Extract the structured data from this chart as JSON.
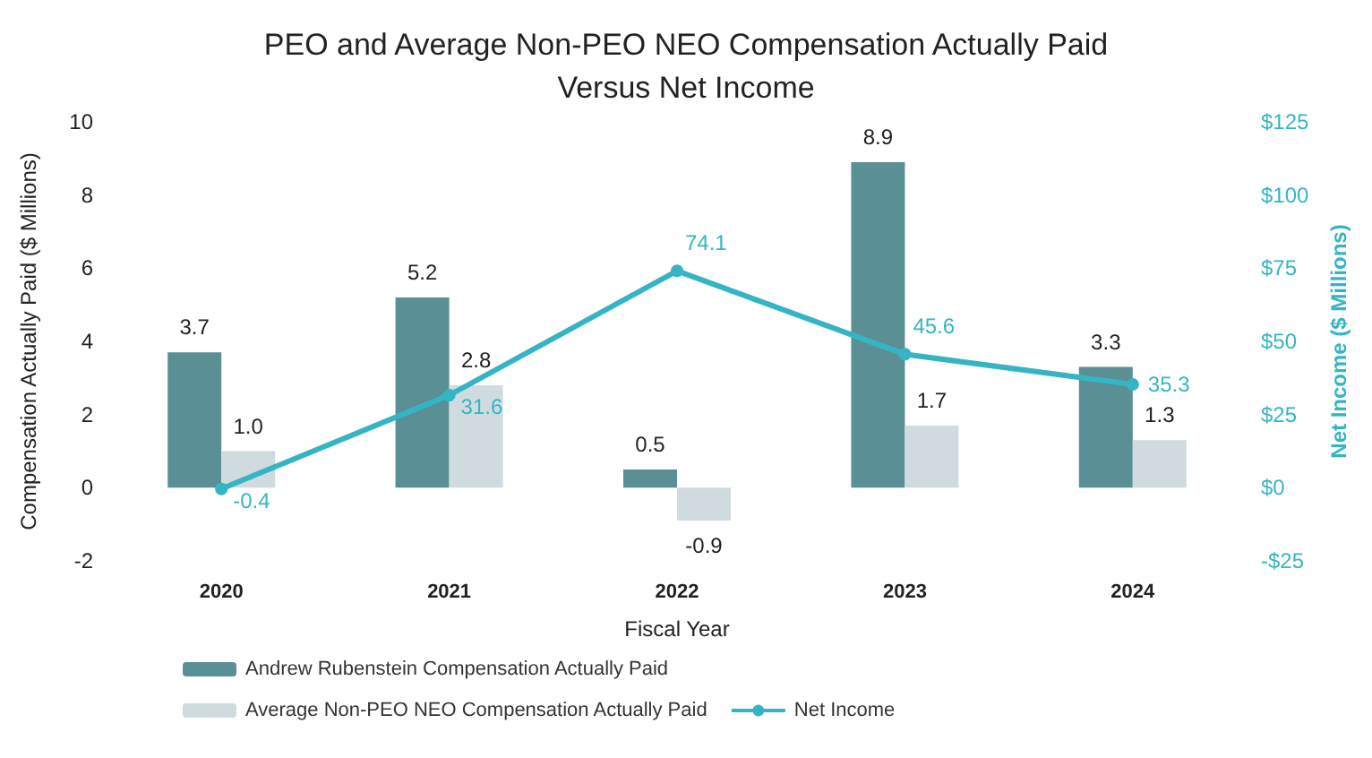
{
  "chart_data": {
    "type": "bar",
    "title": "PEO and Average Non-PEO NEO Compensation Actually Paid\nVersus Net Income",
    "xlabel": "Fiscal Year",
    "ylabel": "Compensation Actually Paid ($ Millions)",
    "y2label": "Net Income ($ Millions)",
    "categories": [
      "2020",
      "2021",
      "2022",
      "2023",
      "2024"
    ],
    "series": [
      {
        "name": "Andrew Rubenstein Compensation Actually Paid",
        "color": "#5a8f96",
        "values": [
          3.7,
          5.2,
          0.5,
          8.9,
          3.3
        ],
        "value_labels": [
          "3.7",
          "5.2",
          "0.5",
          "8.9",
          "3.3"
        ]
      },
      {
        "name": "Average Non-PEO NEO Compensation Actually Paid",
        "color": "#cfdbdf",
        "values": [
          1.0,
          2.8,
          -0.9,
          1.7,
          1.3
        ],
        "value_labels": [
          "1.0",
          "2.8",
          "-0.9",
          "1.7",
          "1.3"
        ]
      },
      {
        "name": "Net Income",
        "type": "line",
        "axis": "y2",
        "color": "#35b5c4",
        "values": [
          -0.4,
          31.6,
          74.1,
          45.6,
          35.3
        ],
        "value_labels": [
          "-0.4",
          "31.6",
          "74.1",
          "45.6",
          "35.3"
        ]
      }
    ],
    "ylim": [
      -2,
      10
    ],
    "yticks": [
      -2,
      0,
      2,
      4,
      6,
      8,
      10
    ],
    "y2lim": [
      -25,
      125
    ],
    "y2ticks": [
      {
        "value": -25,
        "label": "-$25"
      },
      {
        "value": 0,
        "label": "$0"
      },
      {
        "value": 25,
        "label": "$25"
      },
      {
        "value": 50,
        "label": "$50"
      },
      {
        "value": 75,
        "label": "$75"
      },
      {
        "value": 100,
        "label": "$100"
      },
      {
        "value": 125,
        "label": "$125"
      }
    ],
    "legend": "bottom",
    "marker": "circle"
  }
}
